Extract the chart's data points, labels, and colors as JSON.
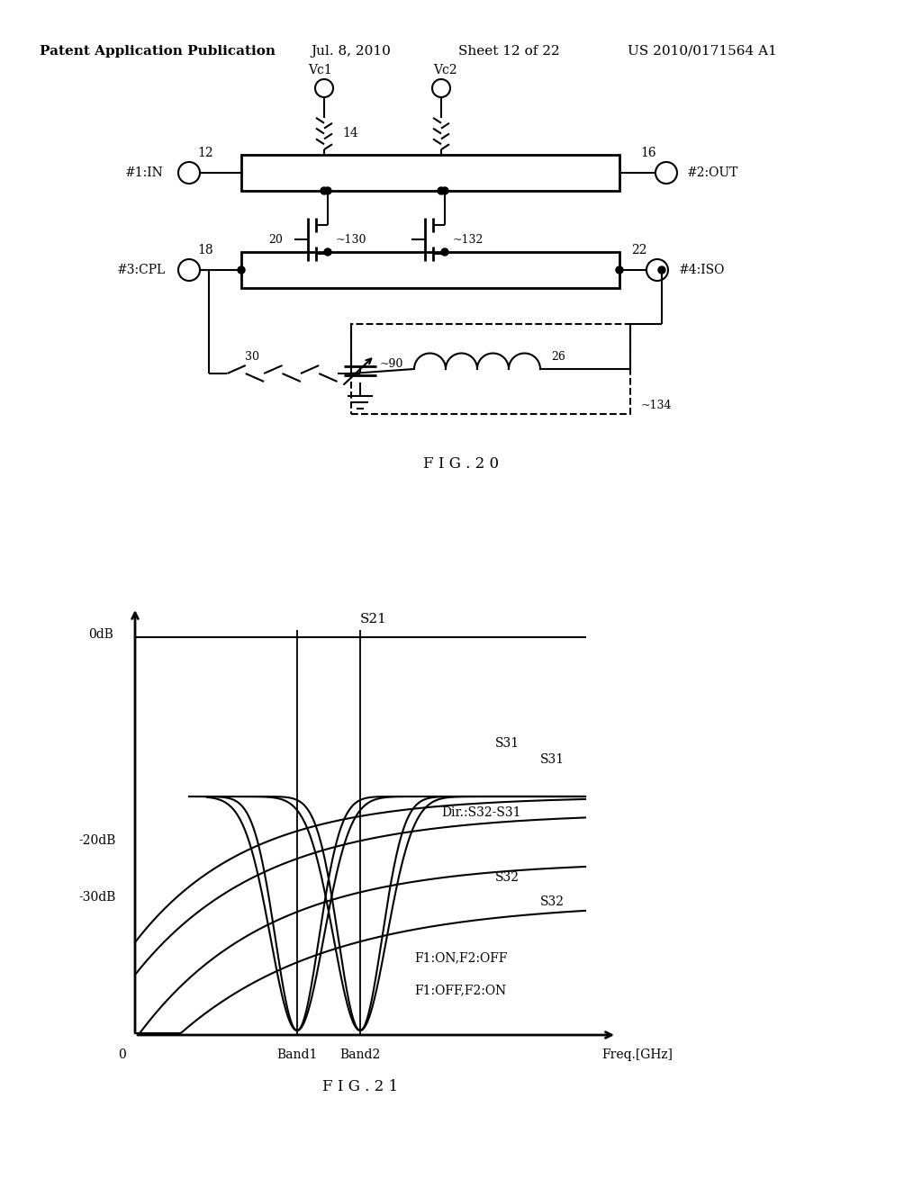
{
  "bg_color": "#ffffff",
  "header_text": "Patent Application Publication",
  "header_date": "Jul. 8, 2010",
  "header_sheet": "Sheet 12 of 22",
  "header_patent": "US 2010/0171564 A1",
  "fig20_label": "F I G . 2 0",
  "fig21_label": "F I G . 2 1",
  "header_fontsize": 11,
  "diagram_fontsize": 10,
  "plot_fontsize": 11
}
